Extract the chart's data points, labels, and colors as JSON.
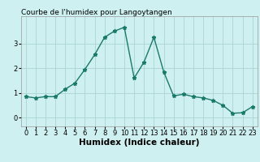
{
  "title": "Courbe de l'humidex pour Langoytangen",
  "xlabel": "Humidex (Indice chaleur)",
  "x": [
    0,
    1,
    2,
    3,
    4,
    5,
    6,
    7,
    8,
    9,
    10,
    11,
    12,
    13,
    14,
    15,
    16,
    17,
    18,
    19,
    20,
    21,
    22,
    23
  ],
  "y": [
    0.85,
    0.8,
    0.85,
    0.85,
    1.15,
    1.4,
    1.95,
    2.55,
    3.25,
    3.5,
    3.65,
    1.6,
    2.25,
    3.25,
    1.85,
    0.88,
    0.95,
    0.85,
    0.8,
    0.7,
    0.5,
    0.18,
    0.2,
    0.45
  ],
  "line_color": "#1a7a6a",
  "marker": "*",
  "background_color": "#cff0f0",
  "grid_color": "#b0d8d8",
  "ylim": [
    -0.35,
    4.1
  ],
  "xlim": [
    -0.5,
    23.5
  ],
  "yticks": [
    0,
    1,
    2,
    3
  ],
  "xticks": [
    0,
    1,
    2,
    3,
    4,
    5,
    6,
    7,
    8,
    9,
    10,
    11,
    12,
    13,
    14,
    15,
    16,
    17,
    18,
    19,
    20,
    21,
    22,
    23
  ],
  "title_fontsize": 6.5,
  "xlabel_fontsize": 7.5,
  "tick_fontsize": 6,
  "linewidth": 1.0,
  "markersize": 3.5
}
